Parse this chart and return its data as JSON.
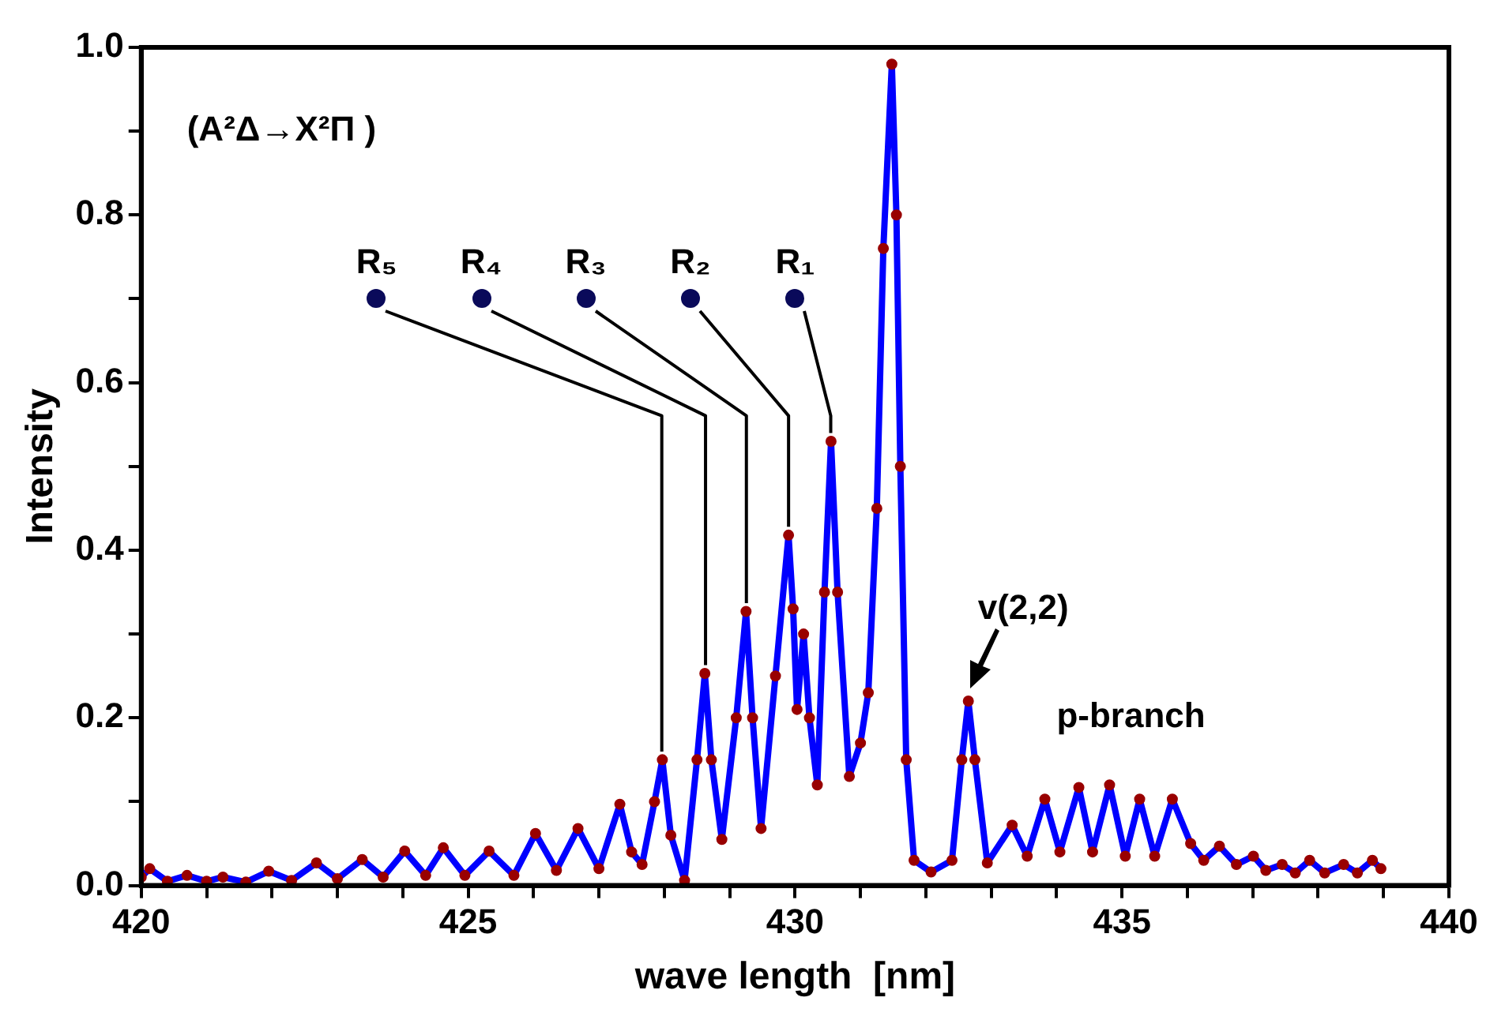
{
  "chart_data": {
    "type": "line",
    "xlabel": "wave length  [nm]",
    "ylabel": "Intensity",
    "annotations": [
      "(A²Δ→X²Π )",
      {
        "text": "R₅",
        "x": 427.97,
        "y": 0.15
      },
      {
        "text": "R₄",
        "x": 428.62,
        "y": 0.253
      },
      {
        "text": "R₃",
        "x": 429.25,
        "y": 0.327
      },
      {
        "text": "R₂",
        "x": 429.9,
        "y": 0.418
      },
      {
        "text": "R₁",
        "x": 430.55,
        "y": 0.53
      },
      {
        "text": "v(2,2)",
        "x": 432.65,
        "y": 0.22
      },
      "p-branch"
    ],
    "xlim": [
      420,
      440
    ],
    "xticks": [
      420,
      {
        "value": 421,
        "label": null
      },
      {
        "value": 422,
        "label": null
      },
      {
        "value": 423,
        "label": null
      },
      {
        "value": 424,
        "label": null
      },
      425,
      {
        "value": 426,
        "label": null
      },
      {
        "value": 427,
        "label": null
      },
      {
        "value": 428,
        "label": null
      },
      {
        "value": 429,
        "label": null
      },
      430,
      {
        "value": 431,
        "label": null
      },
      {
        "value": 432,
        "label": null
      },
      {
        "value": 433,
        "label": null
      },
      {
        "value": 434,
        "label": null
      },
      435,
      {
        "value": 436,
        "label": null
      },
      {
        "value": 437,
        "label": null
      },
      {
        "value": 438,
        "label": null
      },
      {
        "value": 439,
        "label": null
      },
      440
    ],
    "ylim": [
      0,
      1
    ],
    "yticks": [
      {
        "value": 0,
        "label": "0.0"
      },
      {
        "value": 0.1,
        "label": null
      },
      {
        "value": 0.2,
        "label": "0.2"
      },
      {
        "value": 0.3,
        "label": null
      },
      {
        "value": 0.4,
        "label": "0.4"
      },
      {
        "value": 0.5,
        "label": null
      },
      {
        "value": 0.6,
        "label": "0.6"
      },
      {
        "value": 0.7,
        "label": null
      },
      {
        "value": 0.8,
        "label": "0.8"
      },
      {
        "value": 0.9,
        "label": null
      },
      {
        "value": 1,
        "label": "1.0"
      }
    ],
    "x": [
      420.0,
      420.13,
      420.4,
      420.7,
      421.0,
      421.25,
      421.6,
      421.95,
      422.3,
      422.68,
      423.0,
      423.38,
      423.7,
      424.03,
      424.35,
      424.62,
      424.95,
      425.32,
      425.7,
      426.03,
      426.35,
      426.68,
      427.0,
      427.32,
      427.5,
      427.66,
      427.85,
      427.97,
      428.1,
      428.31,
      428.5,
      428.62,
      428.72,
      428.88,
      429.1,
      429.25,
      429.35,
      429.48,
      429.7,
      429.9,
      429.97,
      430.03,
      430.13,
      430.22,
      430.34,
      430.45,
      430.55,
      430.65,
      430.83,
      431.0,
      431.12,
      431.25,
      431.35,
      431.48,
      431.55,
      431.61,
      431.7,
      431.82,
      432.08,
      432.4,
      432.55,
      432.65,
      432.75,
      432.94,
      433.32,
      433.55,
      433.82,
      434.05,
      434.34,
      434.55,
      434.81,
      435.05,
      435.27,
      435.5,
      435.77,
      436.05,
      436.25,
      436.49,
      436.75,
      437.01,
      437.2,
      437.45,
      437.65,
      437.87,
      438.1,
      438.39,
      438.6,
      438.83,
      438.96
    ],
    "series": [
      {
        "type": "line",
        "color": "#0000ff",
        "values": [
          0.01,
          0.02,
          0.005,
          0.012,
          0.005,
          0.01,
          0.004,
          0.017,
          0.006,
          0.027,
          0.008,
          0.031,
          0.01,
          0.041,
          0.012,
          0.045,
          0.012,
          0.041,
          0.012,
          0.062,
          0.018,
          0.068,
          0.02,
          0.097,
          0.04,
          0.025,
          0.1,
          0.15,
          0.06,
          0.006,
          0.15,
          0.253,
          0.15,
          0.055,
          0.2,
          0.327,
          0.2,
          0.068,
          0.25,
          0.418,
          0.33,
          0.21,
          0.3,
          0.2,
          0.12,
          0.35,
          0.53,
          0.35,
          0.13,
          0.17,
          0.23,
          0.45,
          0.76,
          0.98,
          0.8,
          0.5,
          0.15,
          0.03,
          0.016,
          0.03,
          0.15,
          0.22,
          0.15,
          0.027,
          0.072,
          0.035,
          0.103,
          0.04,
          0.117,
          0.04,
          0.12,
          0.035,
          0.103,
          0.035,
          0.103,
          0.05,
          0.03,
          0.047,
          0.025,
          0.035,
          0.018,
          0.025,
          0.015,
          0.03,
          0.015,
          0.025,
          0.015,
          0.03,
          0.02
        ]
      },
      {
        "type": "scatter",
        "color": "#990000",
        "values": [
          0.01,
          0.02,
          0.005,
          0.012,
          0.005,
          0.01,
          0.004,
          0.017,
          0.006,
          0.027,
          0.008,
          0.031,
          0.01,
          0.041,
          0.012,
          0.045,
          0.012,
          0.041,
          0.012,
          0.062,
          0.018,
          0.068,
          0.02,
          0.097,
          0.04,
          0.025,
          0.1,
          0.15,
          0.06,
          0.006,
          0.15,
          0.253,
          0.15,
          0.055,
          0.2,
          0.327,
          0.2,
          0.068,
          0.25,
          0.418,
          0.33,
          0.21,
          0.3,
          0.2,
          0.12,
          0.35,
          0.53,
          0.35,
          0.13,
          0.17,
          0.23,
          0.45,
          0.76,
          0.98,
          0.8,
          0.5,
          0.15,
          0.03,
          0.016,
          0.03,
          0.15,
          0.22,
          0.15,
          0.027,
          0.072,
          0.035,
          0.103,
          0.04,
          0.117,
          0.04,
          0.12,
          0.035,
          0.103,
          0.035,
          0.103,
          0.05,
          0.03,
          0.047,
          0.025,
          0.035,
          0.018,
          0.025,
          0.015,
          0.03,
          0.015,
          0.025,
          0.015,
          0.03,
          0.02
        ]
      }
    ]
  }
}
